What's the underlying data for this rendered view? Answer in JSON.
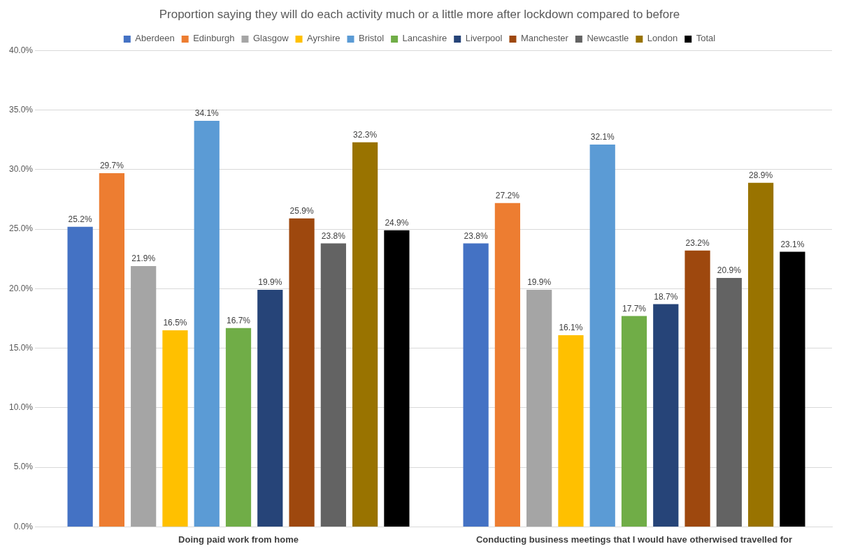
{
  "chart_data": {
    "type": "bar",
    "title": "Proportion saying they will do each activity much or a little more after lockdown compared to before",
    "categories": [
      "Doing paid work from home",
      "Conducting business meetings that I would have otherwised travelled for"
    ],
    "series": [
      {
        "name": "Aberdeen",
        "color": "#4472c4",
        "values": [
          25.2,
          23.8
        ],
        "value_labels": [
          "25.2%",
          "23.8%"
        ]
      },
      {
        "name": "Edinburgh",
        "color": "#ed7d31",
        "values": [
          29.7,
          27.2
        ],
        "value_labels": [
          "29.7%",
          "27.2%"
        ]
      },
      {
        "name": "Glasgow",
        "color": "#a5a5a5",
        "values": [
          21.9,
          19.9
        ],
        "value_labels": [
          "21.9%",
          "19.9%"
        ]
      },
      {
        "name": "Ayrshire",
        "color": "#ffc000",
        "values": [
          16.5,
          16.1
        ],
        "value_labels": [
          "16.5%",
          "16.1%"
        ]
      },
      {
        "name": "Bristol",
        "color": "#5b9bd5",
        "values": [
          34.1,
          32.1
        ],
        "value_labels": [
          "34.1%",
          "32.1%"
        ]
      },
      {
        "name": "Lancashire",
        "color": "#70ad47",
        "values": [
          16.7,
          17.7
        ],
        "value_labels": [
          "16.7%",
          "17.7%"
        ]
      },
      {
        "name": "Liverpool",
        "color": "#264478",
        "values": [
          19.9,
          18.7
        ],
        "value_labels": [
          "19.9%",
          "18.7%"
        ]
      },
      {
        "name": "Manchester",
        "color": "#9e480e",
        "values": [
          25.9,
          23.2
        ],
        "value_labels": [
          "25.9%",
          "23.2%"
        ]
      },
      {
        "name": "Newcastle",
        "color": "#636363",
        "values": [
          23.8,
          20.9
        ],
        "value_labels": [
          "23.8%",
          "20.9%"
        ]
      },
      {
        "name": "London",
        "color": "#997300",
        "values": [
          32.3,
          28.9
        ],
        "value_labels": [
          "32.3%",
          "28.9%"
        ]
      },
      {
        "name": "Total",
        "color": "#000000",
        "values": [
          24.9,
          23.1
        ],
        "value_labels": [
          "24.9%",
          "23.1%"
        ]
      }
    ],
    "ylim": [
      0,
      40
    ],
    "yticks": [
      {
        "value": 0,
        "label": "0.0%"
      },
      {
        "value": 5,
        "label": "5.0%"
      },
      {
        "value": 10,
        "label": "10.0%"
      },
      {
        "value": 15,
        "label": "15.0%"
      },
      {
        "value": 20,
        "label": "20.0%"
      },
      {
        "value": 25,
        "label": "25.0%"
      },
      {
        "value": 30,
        "label": "30.0%"
      },
      {
        "value": 35,
        "label": "35.0%"
      },
      {
        "value": 40,
        "label": "40.0%"
      }
    ],
    "grid": "y",
    "legend": "top"
  }
}
